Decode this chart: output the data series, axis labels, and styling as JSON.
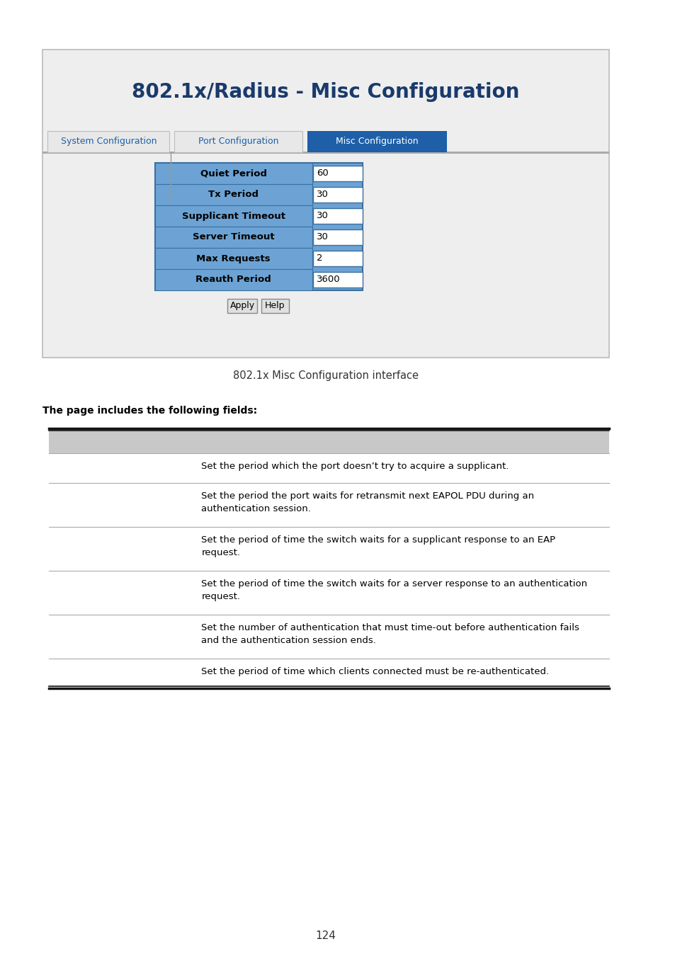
{
  "page_bg": "#ffffff",
  "title": "802.1x/Radius - Misc Configuration",
  "title_color": "#1a3a6b",
  "title_fontsize": 20,
  "tab_labels": [
    "System Configuration",
    "Port Configuration",
    "Misc Configuration"
  ],
  "tab_active": 2,
  "tab_active_color": "#1e5fa8",
  "tab_inactive_color": "#e8e8e8",
  "tab_active_text_color": "#ffffff",
  "tab_inactive_text_color": "#1e5fa8",
  "form_rows": [
    {
      "label": "Quiet Period",
      "value": "60"
    },
    {
      "label": "Tx Period",
      "value": "30"
    },
    {
      "label": "Supplicant Timeout",
      "value": "30"
    },
    {
      "label": "Server Timeout",
      "value": "30"
    },
    {
      "label": "Max Requests",
      "value": "2"
    },
    {
      "label": "Reauth Period",
      "value": "3600"
    }
  ],
  "row_label_bg": "#6ca3d4",
  "row_label_text_color": "#000000",
  "input_bg": "#ffffff",
  "input_border": "#4a7ab5",
  "caption": "802.1x Misc Configuration interface",
  "desc_intro": "The page includes the following fields:",
  "table_header_bg": "#c8c8c8",
  "table_border_color": "#111111",
  "table_rows": [
    {
      "desc": "Set the period which the port doesn’t try to acquire a supplicant."
    },
    {
      "desc": "Set the period the port waits for retransmit next EAPOL PDU during an\nauthentication session."
    },
    {
      "desc": "Set the period of time the switch waits for a supplicant response to an EAP\nrequest."
    },
    {
      "desc": "Set the period of time the switch waits for a server response to an authentication\nrequest."
    },
    {
      "desc": "Set the number of authentication that must time-out before authentication fails\nand the authentication session ends."
    },
    {
      "desc": "Set the period of time which clients connected must be re-authenticated."
    }
  ],
  "page_number": "124",
  "outer_panel_bg": "#eeeeee",
  "outer_panel_border": "#bbbbbb"
}
